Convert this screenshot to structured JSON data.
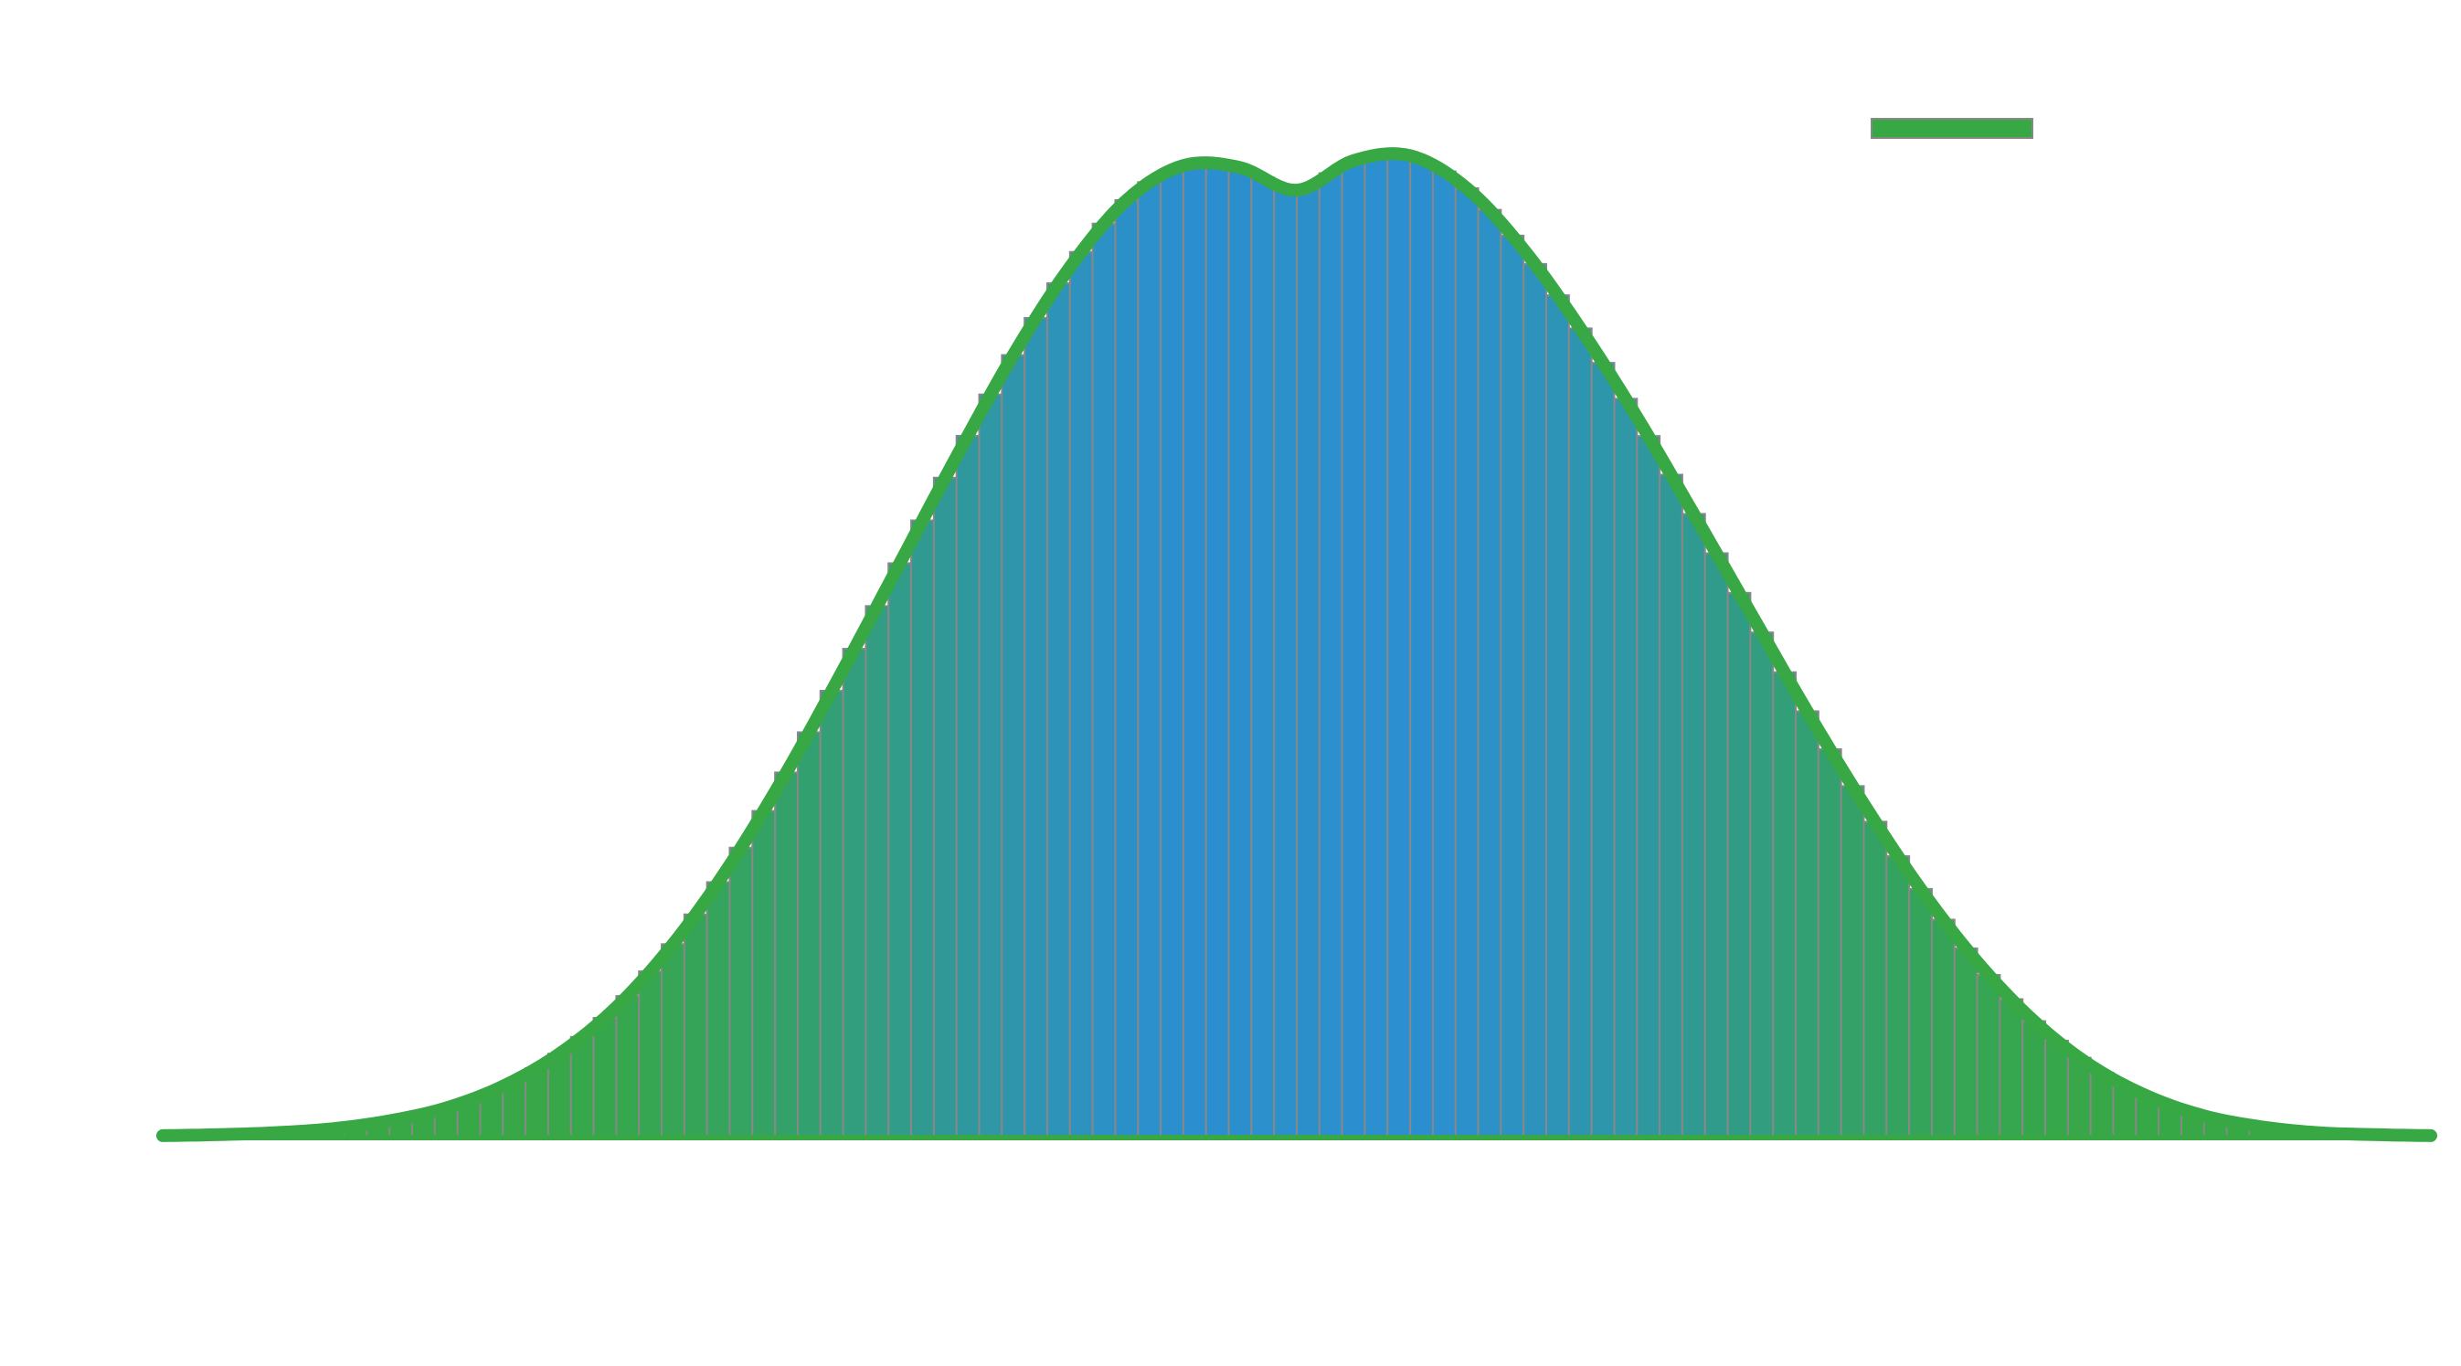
{
  "chart_data": {
    "type": "bar",
    "x": [
      -1.0,
      1.0
    ],
    "bin_count": 100,
    "xlim": [
      -1.0,
      1.0
    ],
    "ylim": [
      0,
      1.0
    ],
    "grid": false,
    "legend": {
      "position": "top-right",
      "entries": [
        {
          "label": "",
          "color": "#37a844"
        }
      ]
    },
    "series": [
      {
        "name": "",
        "kind": "histogram",
        "color": "#2b8fd0",
        "edge_color": "#888888"
      },
      {
        "name": "",
        "kind": "line",
        "color": "#37a844",
        "x": [
          -1.0,
          -0.95,
          -0.9,
          -0.85,
          -0.8,
          -0.75,
          -0.7,
          -0.65,
          -0.6,
          -0.55,
          -0.5,
          -0.45,
          -0.4,
          -0.35,
          -0.3,
          -0.25,
          -0.2,
          -0.15,
          -0.1,
          -0.05,
          0.0,
          0.05,
          0.1,
          0.15,
          0.2,
          0.25,
          0.3,
          0.35,
          0.4,
          0.45,
          0.5,
          0.55,
          0.6,
          0.65,
          0.7,
          0.75,
          0.8,
          0.85,
          0.9,
          0.95,
          1.0
        ],
        "values": [
          0.002,
          0.003,
          0.005,
          0.009,
          0.017,
          0.03,
          0.052,
          0.085,
          0.132,
          0.196,
          0.276,
          0.37,
          0.474,
          0.582,
          0.69,
          0.793,
          0.882,
          0.95,
          0.985,
          0.983,
          0.96,
          0.99,
          0.995,
          0.962,
          0.9,
          0.82,
          0.73,
          0.632,
          0.532,
          0.432,
          0.338,
          0.252,
          0.178,
          0.118,
          0.073,
          0.042,
          0.022,
          0.011,
          0.005,
          0.003,
          0.002
        ]
      }
    ],
    "title": "",
    "xlabel": "",
    "ylabel": ""
  }
}
